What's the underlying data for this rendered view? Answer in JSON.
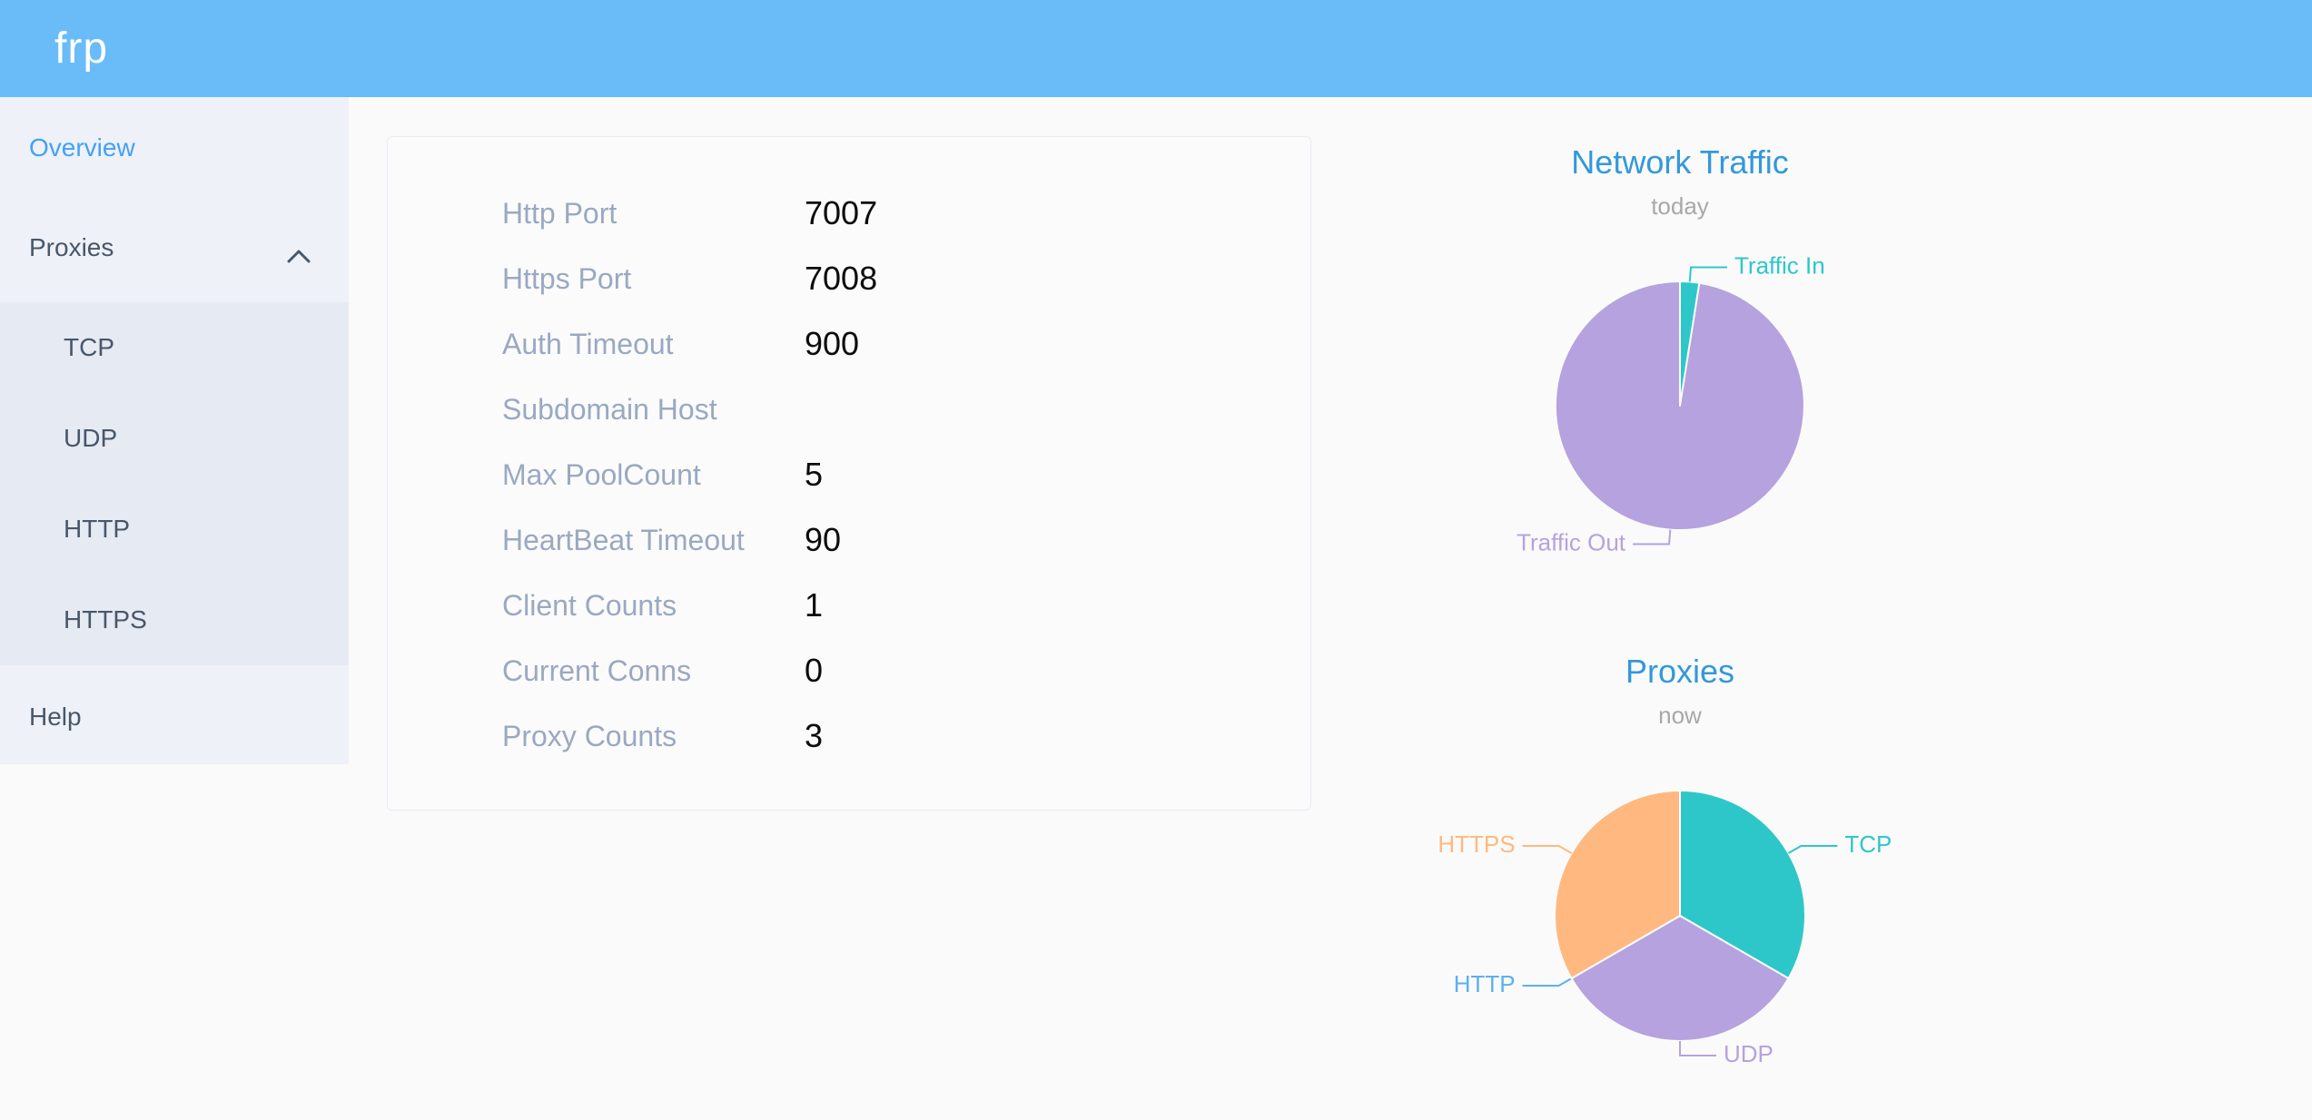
{
  "header": {
    "logo": "frp"
  },
  "sidebar": {
    "items": [
      {
        "label": "Overview",
        "active": true
      },
      {
        "label": "Proxies",
        "expanded": true,
        "children": [
          {
            "label": "TCP"
          },
          {
            "label": "UDP"
          },
          {
            "label": "HTTP"
          },
          {
            "label": "HTTPS"
          }
        ]
      },
      {
        "label": "Help"
      }
    ]
  },
  "overview": {
    "fields": [
      {
        "label": "Http Port",
        "value": "7007"
      },
      {
        "label": "Https Port",
        "value": "7008"
      },
      {
        "label": "Auth Timeout",
        "value": "900"
      },
      {
        "label": "Subdomain Host",
        "value": ""
      },
      {
        "label": "Max PoolCount",
        "value": "5"
      },
      {
        "label": "HeartBeat Timeout",
        "value": "90"
      },
      {
        "label": "Client Counts",
        "value": "1"
      },
      {
        "label": "Current Conns",
        "value": "0"
      },
      {
        "label": "Proxy Counts",
        "value": "3"
      }
    ]
  },
  "chart_data": [
    {
      "type": "pie",
      "title": "Network Traffic",
      "subtitle": "today",
      "legend_position": "none",
      "units": "percent of pie (estimated from slice angles)",
      "series": [
        {
          "name": "Traffic In",
          "value": 2.5,
          "color": "#2ec7c9"
        },
        {
          "name": "Traffic Out",
          "value": 97.5,
          "color": "#b6a2de"
        }
      ]
    },
    {
      "type": "pie",
      "title": "Proxies",
      "subtitle": "now",
      "legend_position": "none",
      "units": "proxy count",
      "series": [
        {
          "name": "TCP",
          "value": 1,
          "color": "#2ec7c9"
        },
        {
          "name": "UDP",
          "value": 1,
          "color": "#b6a2de"
        },
        {
          "name": "HTTP",
          "value": 0,
          "color": "#5ab1ef"
        },
        {
          "name": "HTTPS",
          "value": 1,
          "color": "#ffb980"
        }
      ]
    }
  ],
  "colors": {
    "header_bg": "#69bcf8",
    "sidebar_bg": "#eef1f7",
    "submenu_bg": "#e6eaf2",
    "menu_text": "#48576a",
    "menu_active": "#43a1f8",
    "chart_title": "#3398db",
    "page_bg": "#fafafa"
  }
}
